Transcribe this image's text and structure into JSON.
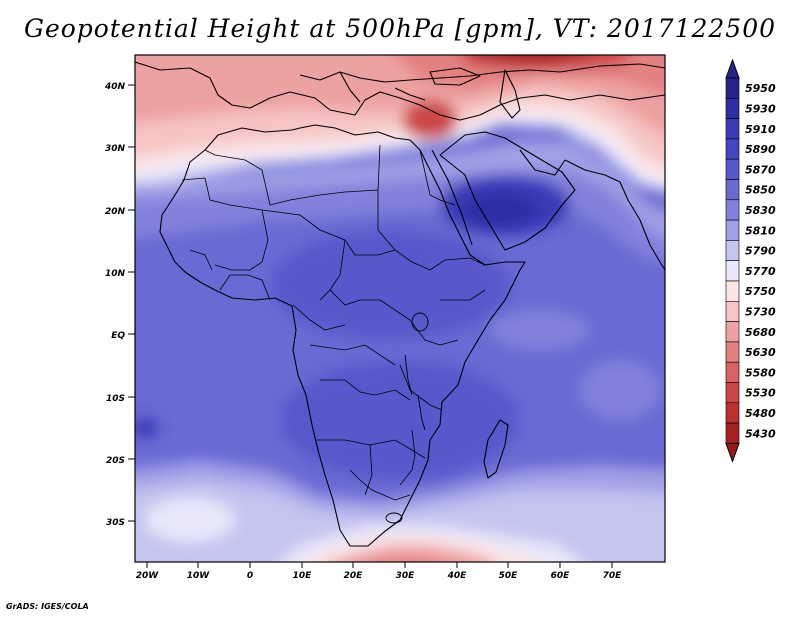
{
  "title": "Geopotential Height at 500hPa [gpm], VT: 2017122500",
  "credit": "GrADS: IGES/COLA",
  "axes": {
    "lat_labels": [
      "40N",
      "30N",
      "20N",
      "10N",
      "EQ",
      "10S",
      "20S",
      "30S"
    ],
    "lon_labels": [
      "20W",
      "10W",
      "0",
      "10E",
      "20E",
      "30E",
      "40E",
      "50E",
      "60E",
      "70E"
    ]
  },
  "legend": {
    "levels": [
      "5950",
      "5930",
      "5910",
      "5890",
      "5870",
      "5850",
      "5830",
      "5810",
      "5790",
      "5770",
      "5750",
      "5730",
      "5680",
      "5630",
      "5580",
      "5530",
      "5480",
      "5430"
    ],
    "colors": [
      "#27238c",
      "#2f2fa4",
      "#3b3bb8",
      "#4646c4",
      "#5858cc",
      "#6a6ad4",
      "#8282dc",
      "#a0a0e6",
      "#c4c4f0",
      "#e8e8fa",
      "#fbe6e6",
      "#f6c4c4",
      "#eda2a2",
      "#e38080",
      "#d86262",
      "#cc4646",
      "#bc3030",
      "#a82020"
    ],
    "top_arrow_color": "#27238c",
    "bottom_arrow_color": "#9c1818"
  }
}
